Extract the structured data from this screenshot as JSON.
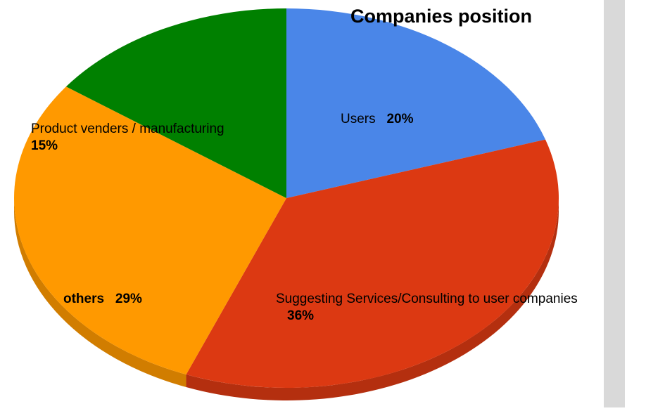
{
  "chart_data": {
    "type": "pie",
    "title": "Companies position",
    "slices": [
      {
        "name": "Users",
        "value": 20,
        "label": "20%",
        "color": "#4a86e8"
      },
      {
        "name": "Suggesting Services/Consulting to user companies",
        "value": 36,
        "label": "36%",
        "color": "#dc3912"
      },
      {
        "name": "others",
        "value": 29,
        "label": "29%",
        "color": "#ff9900"
      },
      {
        "name": "Product venders / manufacturing",
        "value": 15,
        "label": "15%",
        "color": "#008000"
      }
    ],
    "start_angle_deg": 0,
    "direction": "clockwise",
    "style": "3d-tilted"
  }
}
